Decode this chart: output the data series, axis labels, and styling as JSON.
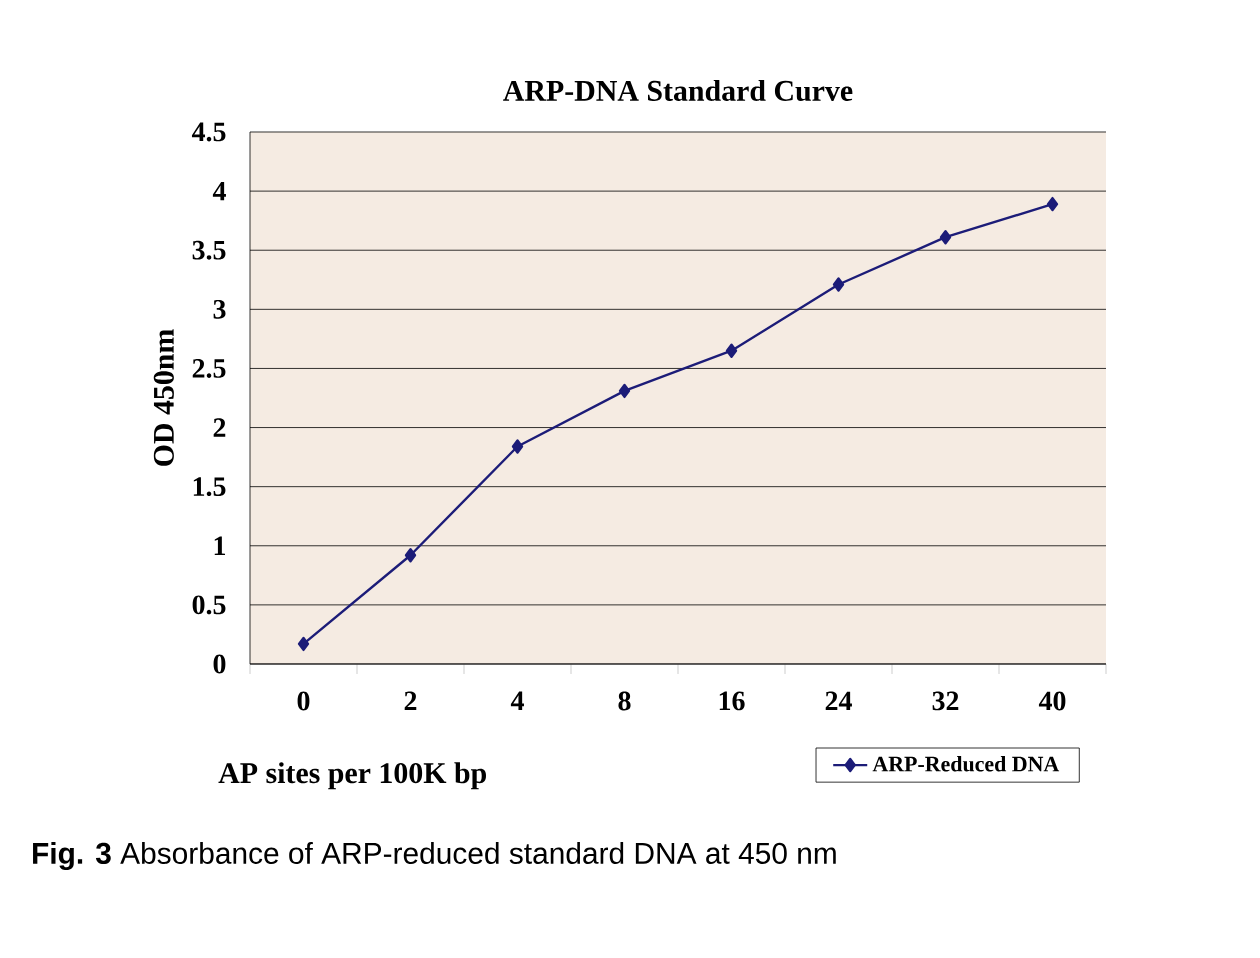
{
  "chart_data": {
    "type": "line",
    "title": "ARP-DNA Standard Curve",
    "xlabel": "AP sites per 100K bp",
    "ylabel": "OD 450nm",
    "categories": [
      "0",
      "2",
      "4",
      "8",
      "16",
      "24",
      "32",
      "40"
    ],
    "series": [
      {
        "name": "ARP-Reduced DNA",
        "color": "#1c1c78",
        "values": [
          0.17,
          0.92,
          1.84,
          2.31,
          2.65,
          3.21,
          3.61,
          3.89
        ]
      }
    ],
    "ylim": [
      0,
      4.5
    ],
    "yticks": [
      0,
      0.5,
      1,
      1.5,
      2,
      2.5,
      3,
      3.5,
      4,
      4.5
    ],
    "grid": "y",
    "legend": "bottom right",
    "marker": "diamond",
    "line_style": "solid",
    "annotations": [
      "**Fig. 3** Absorbance of ARP-reduced standard DNA at 450 nm"
    ]
  }
}
